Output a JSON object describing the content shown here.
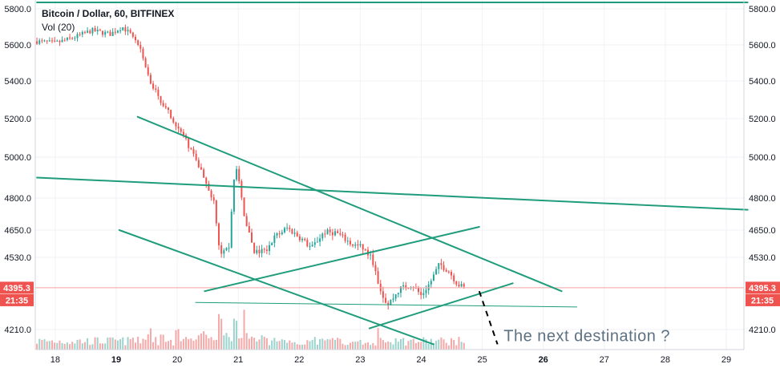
{
  "chart_data": {
    "type": "candlestick",
    "title": "Bitcoin / Dollar, 60, BITFINEX",
    "volume_label": "Vol (20)",
    "x_ticks": [
      {
        "label": "18",
        "day": 18,
        "bold": false
      },
      {
        "label": "19",
        "day": 19,
        "bold": true
      },
      {
        "label": "20",
        "day": 20,
        "bold": false
      },
      {
        "label": "21",
        "day": 21,
        "bold": false
      },
      {
        "label": "22",
        "day": 22,
        "bold": false
      },
      {
        "label": "23",
        "day": 23,
        "bold": false
      },
      {
        "label": "24",
        "day": 24,
        "bold": false
      },
      {
        "label": "25",
        "day": 25,
        "bold": false
      },
      {
        "label": "26",
        "day": 26,
        "bold": true
      },
      {
        "label": "27",
        "day": 27,
        "bold": false
      },
      {
        "label": "28",
        "day": 28,
        "bold": false
      },
      {
        "label": "29",
        "day": 29,
        "bold": false
      }
    ],
    "y_ticks": [
      {
        "label": "5800.0",
        "value": 5800
      },
      {
        "label": "5600.0",
        "value": 5600
      },
      {
        "label": "5400.0",
        "value": 5400
      },
      {
        "label": "5200.0",
        "value": 5200
      },
      {
        "label": "5000.0",
        "value": 5000
      },
      {
        "label": "4800.0",
        "value": 4800
      },
      {
        "label": "4650.0",
        "value": 4650
      },
      {
        "label": "4530.0",
        "value": 4530
      },
      {
        "label": "4210.0",
        "value": 4210
      }
    ],
    "price_badges": [
      {
        "label": "4395.3",
        "value": 4395.3
      },
      {
        "label": "21:35",
        "value": 4340
      }
    ],
    "last_price": 4395.3,
    "x_range": [
      17.7,
      29.35
    ],
    "candle_points": [
      {
        "t": 17.7,
        "p": 5620
      },
      {
        "t": 18.0,
        "p": 5610
      },
      {
        "t": 18.3,
        "p": 5640
      },
      {
        "t": 18.6,
        "p": 5680
      },
      {
        "t": 18.9,
        "p": 5660
      },
      {
        "t": 19.1,
        "p": 5700
      },
      {
        "t": 19.3,
        "p": 5640
      },
      {
        "t": 19.42,
        "p": 5560
      },
      {
        "t": 19.55,
        "p": 5400
      },
      {
        "t": 19.7,
        "p": 5310
      },
      {
        "t": 19.9,
        "p": 5210
      },
      {
        "t": 20.1,
        "p": 5110
      },
      {
        "t": 20.25,
        "p": 5020
      },
      {
        "t": 20.45,
        "p": 4900
      },
      {
        "t": 20.6,
        "p": 4780
      },
      {
        "t": 20.7,
        "p": 4530
      },
      {
        "t": 20.85,
        "p": 4580
      },
      {
        "t": 20.95,
        "p": 4980
      },
      {
        "t": 21.1,
        "p": 4720
      },
      {
        "t": 21.25,
        "p": 4550
      },
      {
        "t": 21.45,
        "p": 4560
      },
      {
        "t": 21.6,
        "p": 4620
      },
      {
        "t": 21.8,
        "p": 4660
      },
      {
        "t": 22.0,
        "p": 4620
      },
      {
        "t": 22.2,
        "p": 4570
      },
      {
        "t": 22.4,
        "p": 4640
      },
      {
        "t": 22.6,
        "p": 4640
      },
      {
        "t": 22.85,
        "p": 4590
      },
      {
        "t": 23.05,
        "p": 4570
      },
      {
        "t": 23.2,
        "p": 4520
      },
      {
        "t": 23.3,
        "p": 4400
      },
      {
        "t": 23.45,
        "p": 4320
      },
      {
        "t": 23.65,
        "p": 4390
      },
      {
        "t": 23.85,
        "p": 4410
      },
      {
        "t": 24.0,
        "p": 4360
      },
      {
        "t": 24.15,
        "p": 4420
      },
      {
        "t": 24.3,
        "p": 4500
      },
      {
        "t": 24.45,
        "p": 4470
      },
      {
        "t": 24.6,
        "p": 4410
      },
      {
        "t": 24.7,
        "p": 4395
      }
    ],
    "candle_count": 170,
    "volume_spikes": [
      {
        "t": 20.7,
        "v": 1.0
      },
      {
        "t": 20.95,
        "v": 0.9
      },
      {
        "t": 21.1,
        "v": 0.85
      },
      {
        "t": 20.0,
        "v": 0.6
      },
      {
        "t": 19.55,
        "v": 0.55
      },
      {
        "t": 23.3,
        "v": 0.5
      },
      {
        "t": 20.45,
        "v": 0.5
      },
      {
        "t": 19.75,
        "v": 0.45
      }
    ],
    "drawn_lines": [
      {
        "name": "top-horizontal-line",
        "from": [
          17.7,
          5837
        ],
        "to": [
          29.35,
          5837
        ],
        "width": 2
      },
      {
        "name": "long-resistance-line",
        "from": [
          17.7,
          4900
        ],
        "to": [
          29.35,
          4745
        ],
        "width": 2
      },
      {
        "name": "wedge-upper-line",
        "from": [
          19.35,
          5210
        ],
        "to": [
          26.3,
          4380
        ],
        "width": 2
      },
      {
        "name": "wedge-lower-line",
        "from": [
          19.05,
          4650
        ],
        "to": [
          24.2,
          4140
        ],
        "width": 2
      },
      {
        "name": "rising-channel-upper",
        "from": [
          20.45,
          4380
        ],
        "to": [
          24.95,
          4665
        ],
        "width": 2
      },
      {
        "name": "rising-channel-lower",
        "from": [
          23.15,
          4215
        ],
        "to": [
          25.5,
          4415
        ],
        "width": 2
      },
      {
        "name": "support-thin-line",
        "from": [
          20.3,
          4330
        ],
        "to": [
          26.55,
          4310
        ],
        "width": 1
      }
    ],
    "projection_line": {
      "from": [
        24.95,
        4380
      ],
      "to": [
        25.25,
        4140
      ]
    },
    "annotation": "The next destination ?",
    "annotation_anchor": [
      25.35,
      4200
    ],
    "colors": {
      "up": "#26a69a",
      "down": "#ef5350",
      "up_volume": "#9bd3cd",
      "down_volume": "#f5a8a8",
      "trendline": "#1f9c7b",
      "grid": "#f0f2f5",
      "badge": "#ef5350",
      "annotation": "#5d7181",
      "axis_text": "#131722"
    }
  }
}
